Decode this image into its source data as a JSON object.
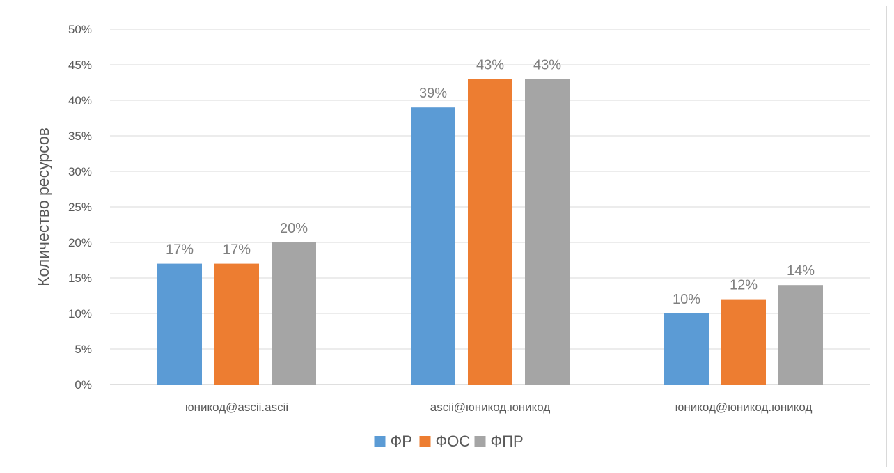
{
  "chart_data": {
    "type": "bar",
    "title": "",
    "xlabel": "",
    "ylabel": "Количество ресурсов",
    "ylim": [
      0,
      50
    ],
    "y_tick_step": 5,
    "y_tick_suffix": "%",
    "grid": true,
    "legend": "bottom",
    "categories": [
      "юникод@ascii.ascii",
      "ascii@юникод.юникод",
      "юникод@юникод.юникод"
    ],
    "series": [
      {
        "name": "ФР",
        "color": "#5b9bd5",
        "values": [
          17,
          39,
          10
        ]
      },
      {
        "name": "ФОС",
        "color": "#ed7d31",
        "values": [
          17,
          43,
          12
        ]
      },
      {
        "name": "ФПР",
        "color": "#a5a5a5",
        "values": [
          20,
          43,
          14
        ]
      }
    ]
  }
}
